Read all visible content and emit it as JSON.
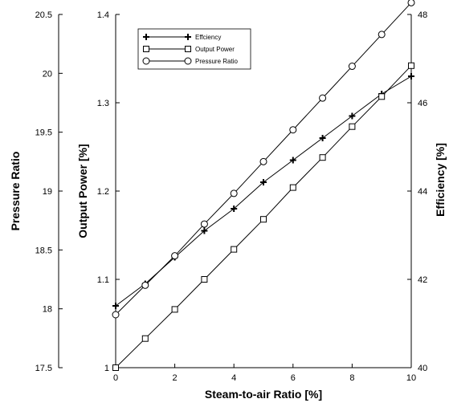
{
  "chart_data": {
    "type": "line",
    "xlabel": "Steam-to-air Ratio [%]",
    "x": [
      0,
      1,
      2,
      3,
      4,
      5,
      6,
      7,
      8,
      9,
      10
    ],
    "xlim": [
      0,
      10
    ],
    "xticks": [
      "0",
      "2",
      "4",
      "6",
      "8",
      "10"
    ],
    "axes": {
      "pressure": {
        "label": "Pressure Ratio",
        "ylim": [
          17.5,
          20.5
        ],
        "ticks": [
          "17.5",
          "18",
          "18.5",
          "19",
          "19.5",
          "20",
          "20.5"
        ]
      },
      "power": {
        "label": "Output Power [%]",
        "ylim": [
          1.0,
          1.4
        ],
        "ticks": [
          "1",
          "1.1",
          "1.2",
          "1.3",
          "1.4"
        ]
      },
      "efficiency": {
        "label": "Efficiency [%]",
        "ylim": [
          40,
          48
        ],
        "ticks": [
          "40",
          "42",
          "44",
          "46",
          "48"
        ]
      }
    },
    "series": [
      {
        "name": "Effciency",
        "marker": "plus",
        "axis": "efficiency",
        "values": [
          41.4,
          41.9,
          42.5,
          43.1,
          43.6,
          44.2,
          44.7,
          45.2,
          45.7,
          46.2,
          46.6
        ]
      },
      {
        "name": "Output Power",
        "marker": "square",
        "axis": "power",
        "values": [
          1.0,
          1.033,
          1.066,
          1.1,
          1.134,
          1.168,
          1.204,
          1.238,
          1.273,
          1.307,
          1.342
        ]
      },
      {
        "name": "Pressure Ratio",
        "marker": "circle",
        "axis": "pressure",
        "values": [
          17.95,
          18.2,
          18.45,
          18.72,
          18.98,
          19.25,
          19.52,
          19.79,
          20.06,
          20.33,
          20.6
        ]
      }
    ],
    "legend": "top-left"
  }
}
